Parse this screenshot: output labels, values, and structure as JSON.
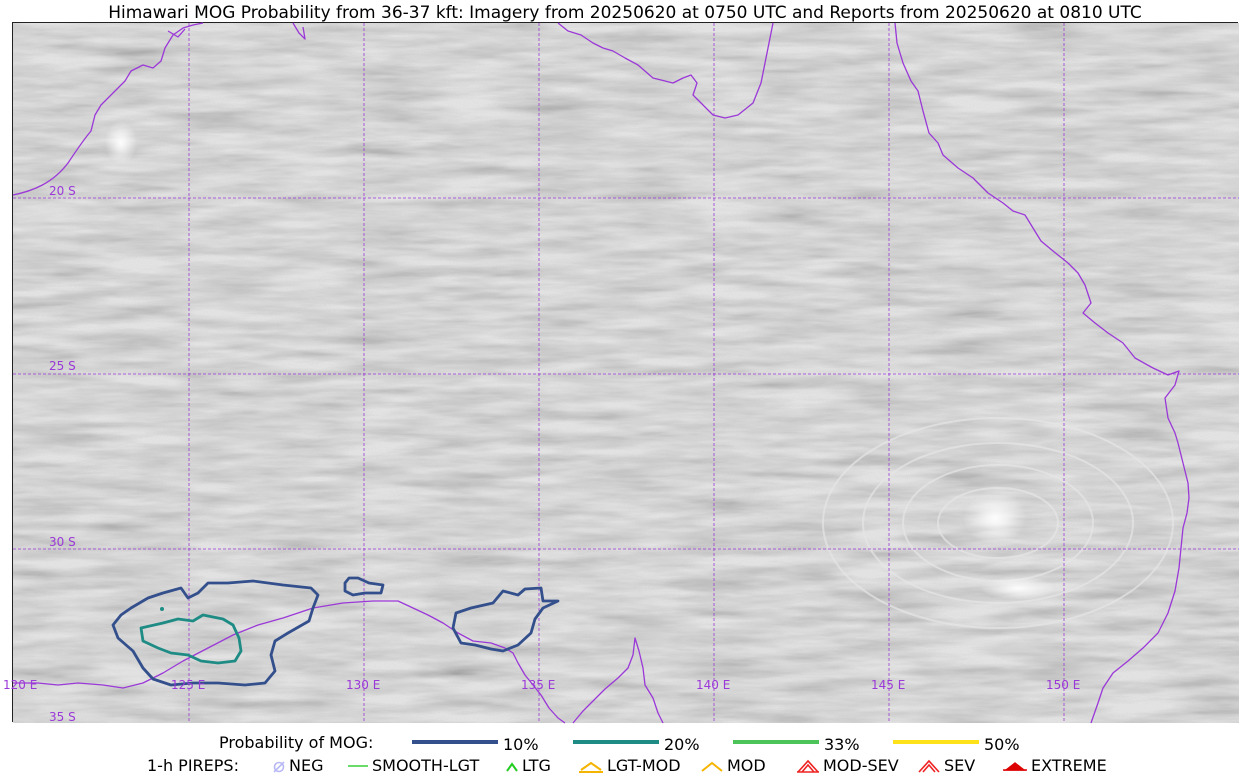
{
  "title": "Himawari MOG Probability from 36-37 kft: Imagery from 20250620 at 0750 UTC and Reports from 20250620 at 0810 UTC",
  "map": {
    "lat_labels": [
      "20 S",
      "25 S",
      "30 S",
      "35 S"
    ],
    "lon_labels": [
      "120 E",
      "125 E",
      "130 E",
      "135 E",
      "140 E",
      "145 E",
      "150 E"
    ],
    "coastline_color": "#9b38d8",
    "gridline_color": "#9b38d8",
    "background": "grayscale satellite imagery",
    "contours": [
      {
        "probability": "10%",
        "color": "#334f8c"
      },
      {
        "probability": "20%",
        "color": "#1e8c84"
      }
    ]
  },
  "legend": {
    "probability_heading": "Probability of MOG:",
    "probability_items": [
      {
        "label": "10%",
        "color": "#334f8c"
      },
      {
        "label": "20%",
        "color": "#1e8c84"
      },
      {
        "label": "33%",
        "color": "#4cc45a"
      },
      {
        "label": "50%",
        "color": "#ffe21a"
      }
    ],
    "pireps_heading": "1-h PIREPS:",
    "pirep_items": [
      {
        "label": "NEG",
        "icon": "neg-icon",
        "color": "#b8b8f5"
      },
      {
        "label": "SMOOTH-LGT",
        "icon": "smooth-lgt-line-icon",
        "color": "#3ad13a"
      },
      {
        "label": "LTG",
        "icon": "ltg-caret-icon",
        "color": "#22cc22"
      },
      {
        "label": "LGT-MOD",
        "icon": "lgt-mod-icon",
        "color": "#f5b400"
      },
      {
        "label": "MOD",
        "icon": "mod-icon",
        "color": "#f5b400"
      },
      {
        "label": "MOD-SEV",
        "icon": "mod-sev-icon",
        "color": "#ee2222"
      },
      {
        "label": "SEV",
        "icon": "sev-icon",
        "color": "#ee2222"
      },
      {
        "label": "EXTREME",
        "icon": "extreme-icon",
        "color": "#dd0000"
      }
    ]
  }
}
